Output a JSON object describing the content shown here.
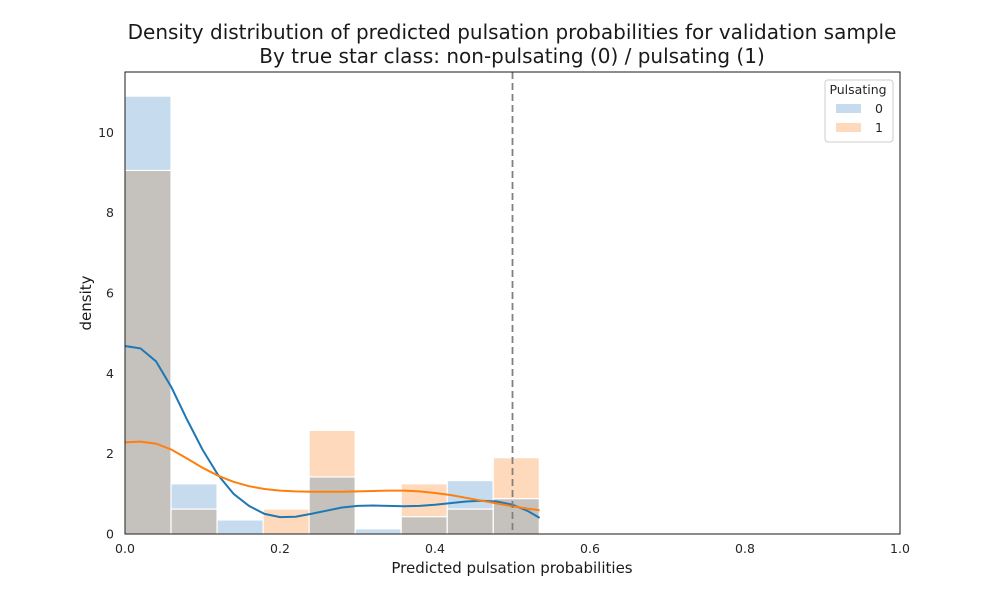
{
  "chart_data": {
    "type": "histogram",
    "title": "Density distribution of predicted pulsation probabilities for validation sample",
    "subtitle": "By true star class: non-pulsating (0) / pulsating (1)",
    "xlabel": "Predicted pulsation probabilities",
    "ylabel": "density",
    "xlim": [
      0,
      1
    ],
    "ylim": [
      0,
      11.5
    ],
    "xticks": [
      "0.0",
      "0.2",
      "0.4",
      "0.6",
      "0.8",
      "1.0"
    ],
    "yticks": [
      "0",
      "2",
      "4",
      "6",
      "8",
      "10"
    ],
    "grid": false,
    "legend": {
      "title": "Pulsating",
      "placement": "top-right"
    },
    "bin_edges": [
      0.0,
      0.0594,
      0.1188,
      0.1782,
      0.2376,
      0.297,
      0.3564,
      0.4158,
      0.4752,
      0.5346
    ],
    "threshold": 0.5,
    "series": [
      {
        "name": "0",
        "color": "#1f77b4",
        "fill": "#c6dcee",
        "values": [
          10.9,
          1.25,
          0.35,
          0.0,
          1.42,
          0.13,
          0.43,
          1.33,
          0.88
        ],
        "kde": [
          [
            0.0,
            4.68
          ],
          [
            0.02,
            4.62
          ],
          [
            0.04,
            4.3
          ],
          [
            0.06,
            3.65
          ],
          [
            0.08,
            2.85
          ],
          [
            0.1,
            2.1
          ],
          [
            0.12,
            1.47
          ],
          [
            0.14,
            1.0
          ],
          [
            0.16,
            0.7
          ],
          [
            0.18,
            0.5
          ],
          [
            0.2,
            0.42
          ],
          [
            0.22,
            0.43
          ],
          [
            0.24,
            0.5
          ],
          [
            0.26,
            0.58
          ],
          [
            0.28,
            0.66
          ],
          [
            0.3,
            0.7
          ],
          [
            0.32,
            0.71
          ],
          [
            0.34,
            0.7
          ],
          [
            0.36,
            0.69
          ],
          [
            0.38,
            0.7
          ],
          [
            0.4,
            0.73
          ],
          [
            0.42,
            0.77
          ],
          [
            0.44,
            0.81
          ],
          [
            0.46,
            0.83
          ],
          [
            0.48,
            0.81
          ],
          [
            0.5,
            0.73
          ],
          [
            0.52,
            0.57
          ],
          [
            0.535,
            0.4
          ]
        ]
      },
      {
        "name": "1",
        "color": "#ff7f0e",
        "fill": "#fed9bb",
        "values": [
          9.05,
          0.62,
          0.0,
          0.62,
          2.58,
          0.0,
          1.25,
          0.62,
          1.9
        ],
        "kde": [
          [
            0.0,
            2.28
          ],
          [
            0.02,
            2.3
          ],
          [
            0.04,
            2.25
          ],
          [
            0.06,
            2.1
          ],
          [
            0.08,
            1.88
          ],
          [
            0.1,
            1.65
          ],
          [
            0.12,
            1.45
          ],
          [
            0.14,
            1.3
          ],
          [
            0.16,
            1.19
          ],
          [
            0.18,
            1.12
          ],
          [
            0.2,
            1.08
          ],
          [
            0.22,
            1.06
          ],
          [
            0.24,
            1.05
          ],
          [
            0.26,
            1.05
          ],
          [
            0.28,
            1.05
          ],
          [
            0.3,
            1.06
          ],
          [
            0.32,
            1.07
          ],
          [
            0.34,
            1.08
          ],
          [
            0.36,
            1.08
          ],
          [
            0.38,
            1.06
          ],
          [
            0.4,
            1.02
          ],
          [
            0.42,
            0.97
          ],
          [
            0.44,
            0.9
          ],
          [
            0.46,
            0.83
          ],
          [
            0.48,
            0.76
          ],
          [
            0.5,
            0.69
          ],
          [
            0.52,
            0.63
          ],
          [
            0.535,
            0.59
          ]
        ]
      }
    ],
    "overlap_fill": "#c5c2bd"
  }
}
